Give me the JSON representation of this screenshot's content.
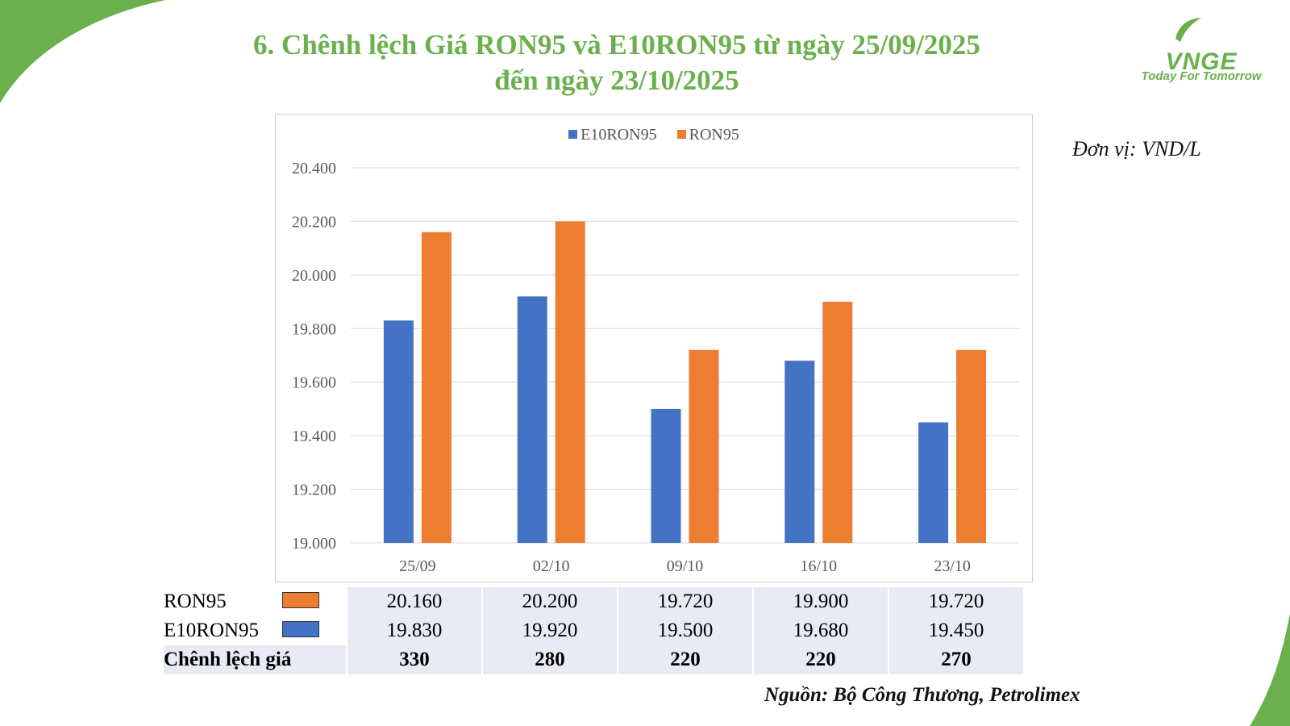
{
  "title": {
    "line1": "6. Chênh lệch Giá RON95 và E10RON95 từ ngày 25/09/2025",
    "line2": "đến ngày 23/10/2025"
  },
  "logo": {
    "text": "VNGE",
    "tagline": "Today For Tomorrow"
  },
  "unit_label": "Đơn vị: VND/L",
  "source": "Nguồn: Bộ Công Thương, Petrolimex",
  "colors": {
    "green": "#6ab04c",
    "blue": "#4472c4",
    "orange": "#ed7d31"
  },
  "chart_data": {
    "type": "bar",
    "categories": [
      "25/09",
      "02/10",
      "09/10",
      "16/10",
      "23/10"
    ],
    "series": [
      {
        "name": "E10RON95",
        "color": "#4472c4",
        "values": [
          19830,
          19920,
          19500,
          19680,
          19450
        ]
      },
      {
        "name": "RON95",
        "color": "#ed7d31",
        "values": [
          20160,
          20200,
          19720,
          19900,
          19720
        ]
      }
    ],
    "ylim": [
      19000,
      20400
    ],
    "yticks": [
      19000,
      19200,
      19400,
      19600,
      19800,
      20000,
      20200,
      20400
    ],
    "ytick_labels": [
      "19.000",
      "19.200",
      "19.400",
      "19.600",
      "19.800",
      "20.000",
      "20.200",
      "20.400"
    ],
    "grid": true,
    "legend": "top-center"
  },
  "table": {
    "rows": [
      {
        "label": "RON95",
        "values": [
          "20.160",
          "20.200",
          "19.720",
          "19.900",
          "19.720"
        ]
      },
      {
        "label": "E10RON95",
        "values": [
          "19.830",
          "19.920",
          "19.500",
          "19.680",
          "19.450"
        ]
      },
      {
        "label": "Chênh lệch giá",
        "values": [
          "330",
          "280",
          "220",
          "220",
          "270"
        ]
      }
    ]
  }
}
